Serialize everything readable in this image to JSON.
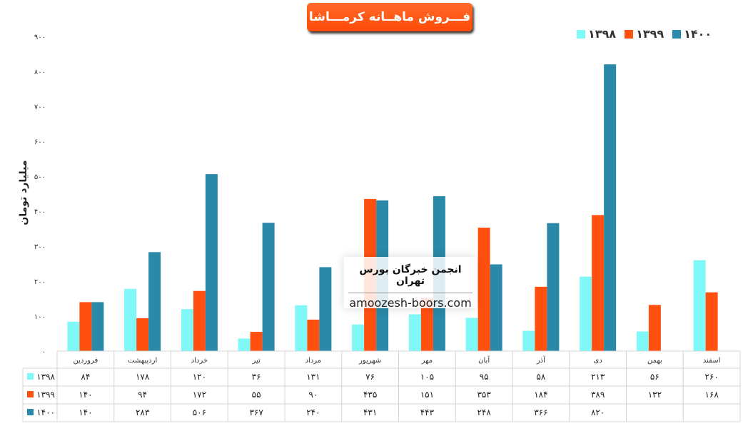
{
  "colors": {
    "1398": "#80f8f8",
    "1399": "#ff5010",
    "1400": "#2a88a8"
  },
  "watermark": {
    "line1": "انجمن خبرگان بورس تهران",
    "line2": "amoozesh-boors.com"
  },
  "chart_data": {
    "type": "bar",
    "title": "فـــروش ماهــانه کرمـــاشا",
    "ylabel": "میلیارد تومان",
    "xlabel": "",
    "ylim": [
      0,
      900
    ],
    "yticks": [
      0,
      100,
      200,
      300,
      400,
      500,
      600,
      700,
      800,
      900
    ],
    "grid": false,
    "legend": "top-right",
    "categories": [
      "فروردین",
      "اردیبهشت",
      "خرداد",
      "تیر",
      "مرداد",
      "شهریور",
      "مهر",
      "آبان",
      "آذر",
      "دی",
      "بهمن",
      "اسفند"
    ],
    "series": [
      {
        "name": "۱۳۹۸",
        "key": "1398",
        "values": [
          84,
          178,
          120,
          36,
          131,
          76,
          105,
          95,
          58,
          213,
          56,
          260
        ]
      },
      {
        "name": "۱۳۹۹",
        "key": "1399",
        "values": [
          140,
          94,
          172,
          55,
          90,
          435,
          151,
          353,
          184,
          389,
          132,
          168
        ]
      },
      {
        "name": "۱۴۰۰",
        "key": "1400",
        "values": [
          140,
          283,
          506,
          367,
          240,
          431,
          443,
          248,
          366,
          820,
          null,
          null
        ]
      }
    ]
  }
}
